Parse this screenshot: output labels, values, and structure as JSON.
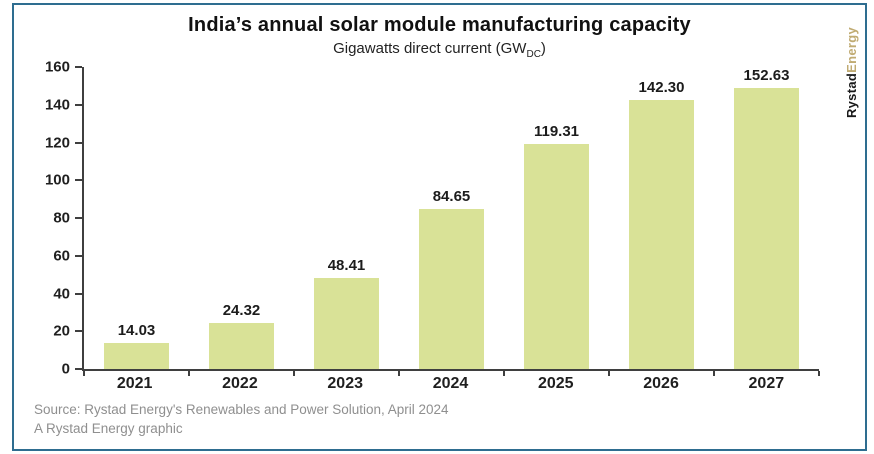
{
  "header": {
    "title": "India’s annual solar module manufacturing capacity",
    "subtitle_prefix": "Gigawatts direct current (GW",
    "subtitle_subscript": "DC",
    "subtitle_suffix": ")"
  },
  "logo": {
    "part1": "Rystad",
    "part2": "Energy"
  },
  "chart_data": {
    "type": "bar",
    "title": "India’s annual solar module manufacturing capacity",
    "subtitle": "Gigawatts direct current (GW DC)",
    "categories": [
      "2021",
      "2022",
      "2023",
      "2024",
      "2025",
      "2026",
      "2027"
    ],
    "values": [
      14.03,
      24.32,
      48.41,
      84.65,
      119.31,
      142.3,
      152.63
    ],
    "value_labels": [
      "14.03",
      "24.32",
      "48.41",
      "84.65",
      "119.31",
      "142.30",
      "152.63"
    ],
    "xlabel": "",
    "ylabel": "",
    "ylim": [
      0,
      160
    ],
    "yticks": [
      0,
      20,
      40,
      60,
      80,
      100,
      120,
      140,
      160
    ],
    "grid": false,
    "legend": "none",
    "bar_color": "#d9e297"
  },
  "footer": {
    "source_line1": "Source: Rystad Energy's Renewables and Power Solution, April 2024",
    "source_line2": "A Rystad Energy graphic"
  },
  "colors": {
    "frame_border": "#2e6d90",
    "bar": "#d9e297",
    "axis": "#3f3f3f",
    "text": "#1f1f1f",
    "muted_text": "#8f8f8f",
    "logo_dark": "#1a1a1a",
    "logo_tan": "#c0ab72"
  }
}
